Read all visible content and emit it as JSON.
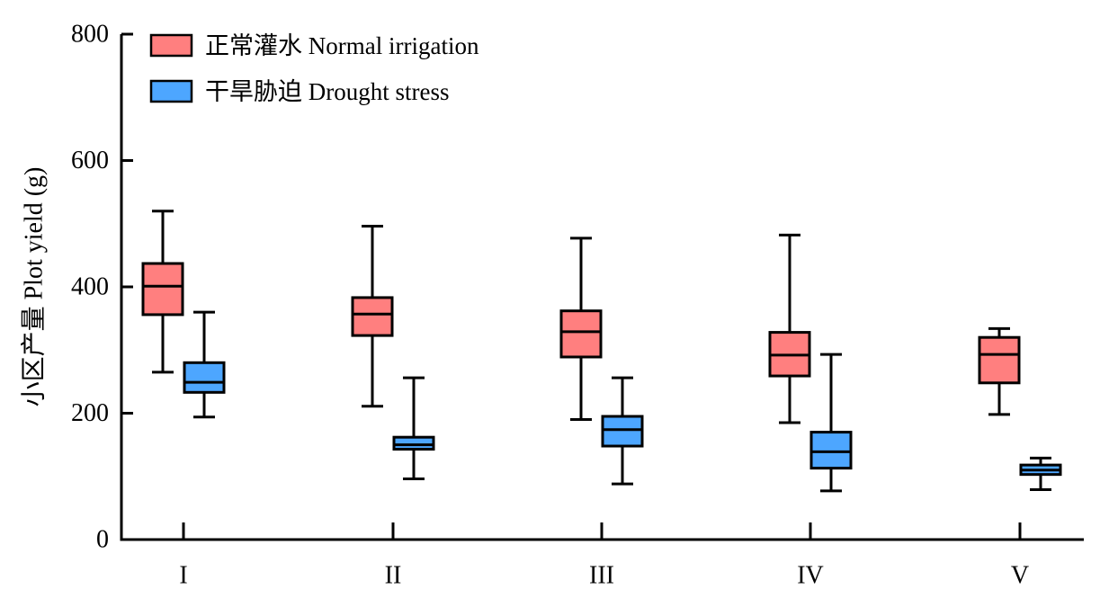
{
  "chart_data": {
    "type": "box",
    "ylabel": "小区产量 Plot yield (g)",
    "ylim": [
      0,
      800
    ],
    "yticks": [
      0,
      200,
      400,
      600,
      800
    ],
    "categories": [
      "I",
      "II",
      "III",
      "IV",
      "V"
    ],
    "grid": false,
    "legend_position": "top-left",
    "series": [
      {
        "name": "正常灌水 Normal irrigation",
        "color": "#ff7f7f",
        "boxes": [
          {
            "min": 265,
            "q1": 356,
            "median": 401,
            "q3": 437,
            "max": 520
          },
          {
            "min": 211,
            "q1": 323,
            "median": 357,
            "q3": 383,
            "max": 496
          },
          {
            "min": 190,
            "q1": 289,
            "median": 329,
            "q3": 362,
            "max": 477
          },
          {
            "min": 185,
            "q1": 259,
            "median": 292,
            "q3": 328,
            "max": 482
          },
          {
            "min": 198,
            "q1": 248,
            "median": 293,
            "q3": 320,
            "max": 334
          }
        ]
      },
      {
        "name": "干旱胁迫 Drought stress",
        "color": "#4da6ff",
        "boxes": [
          {
            "min": 194,
            "q1": 233,
            "median": 249,
            "q3": 280,
            "max": 360
          },
          {
            "min": 96,
            "q1": 143,
            "median": 150,
            "q3": 162,
            "max": 256
          },
          {
            "min": 88,
            "q1": 148,
            "median": 174,
            "q3": 195,
            "max": 256
          },
          {
            "min": 77,
            "q1": 113,
            "median": 139,
            "q3": 170,
            "max": 293
          },
          {
            "min": 79,
            "q1": 103,
            "median": 110,
            "q3": 118,
            "max": 129
          }
        ]
      }
    ]
  }
}
